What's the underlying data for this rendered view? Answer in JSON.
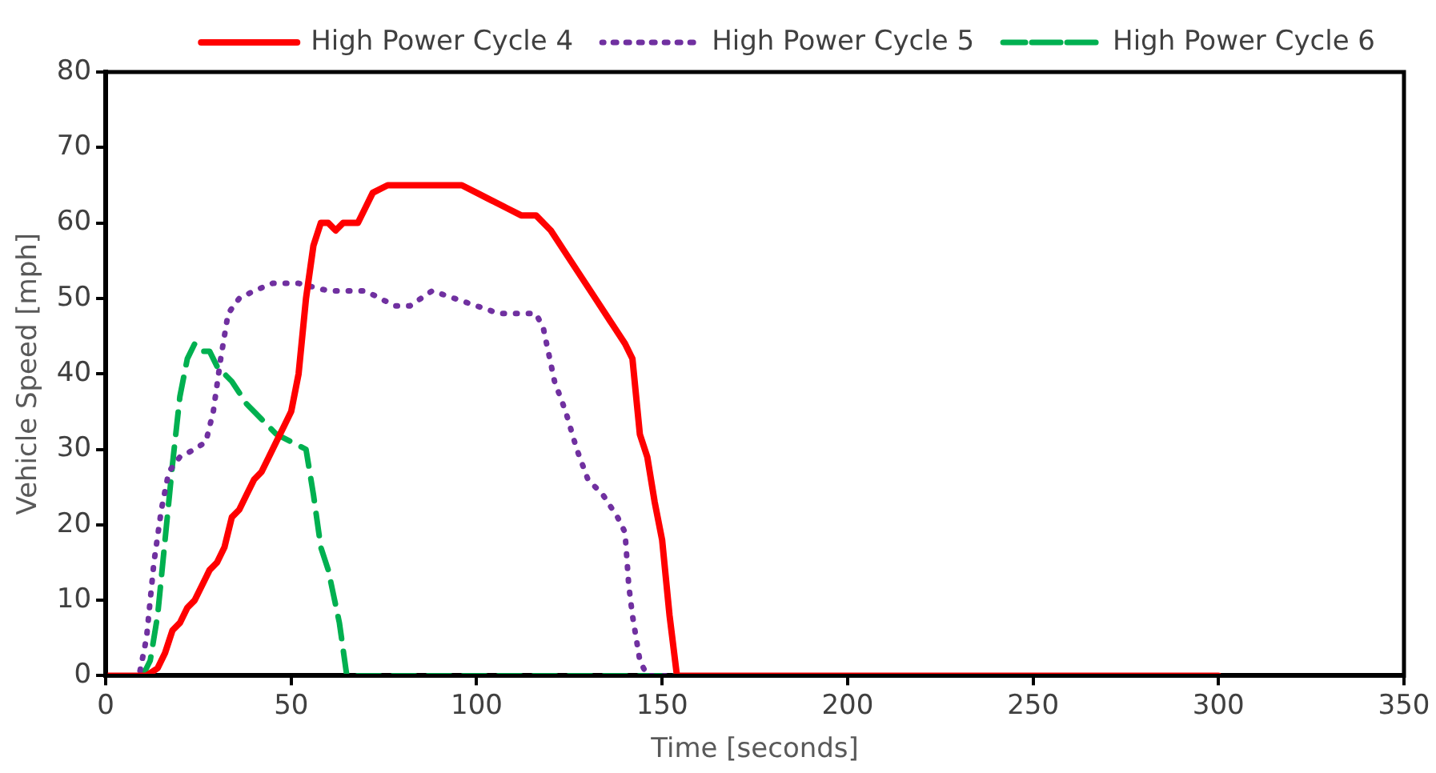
{
  "chart_data": {
    "type": "line",
    "xlabel": "Time [seconds]",
    "ylabel": "Vehicle Speed [mph]",
    "xlim": [
      0,
      350
    ],
    "xticks": [
      0,
      50,
      100,
      150,
      200,
      250,
      300,
      350
    ],
    "ylim": [
      0,
      80
    ],
    "yticks": [
      0,
      10,
      20,
      30,
      40,
      50,
      60,
      70,
      80
    ],
    "grid": false,
    "legend": "top",
    "marker": "none",
    "series": [
      {
        "name": "High Power Cycle 4",
        "color": "#ff0000",
        "line_style": "solid",
        "x": [
          0,
          11,
          14,
          16,
          18,
          20,
          22,
          24,
          26,
          28,
          30,
          32,
          34,
          36,
          38,
          40,
          42,
          44,
          46,
          48,
          50,
          52,
          54,
          56,
          58,
          60,
          62,
          64,
          66,
          68,
          70,
          72,
          76,
          96,
          100,
          104,
          108,
          112,
          116,
          120,
          124,
          128,
          132,
          136,
          140,
          142,
          144,
          146,
          148,
          150,
          152,
          154,
          300
        ],
        "values": [
          0,
          0,
          1,
          3,
          6,
          7,
          9,
          10,
          12,
          14,
          15,
          17,
          21,
          22,
          24,
          26,
          27,
          29,
          31,
          33,
          35,
          40,
          50,
          57,
          60,
          60,
          59,
          60,
          60,
          60,
          62,
          64,
          65,
          65,
          64,
          63,
          62,
          61,
          61,
          59,
          56,
          53,
          50,
          47,
          44,
          42,
          32,
          29,
          23,
          18,
          8,
          0,
          0
        ]
      },
      {
        "name": "High Power Cycle 5",
        "color": "#7030a0",
        "line_style": "dotted",
        "x": [
          0,
          9,
          11,
          13,
          15,
          17,
          20,
          24,
          27,
          29,
          31,
          33,
          36,
          40,
          45,
          52,
          60,
          70,
          78,
          82,
          88,
          94,
          100,
          106,
          116,
          118,
          121,
          124,
          127,
          130,
          134,
          138,
          140,
          141,
          142,
          144,
          146,
          300
        ],
        "values": [
          0,
          0,
          5,
          15,
          22,
          27,
          29,
          30,
          31,
          35,
          42,
          48,
          50,
          51,
          52,
          52,
          51,
          51,
          49,
          49,
          51,
          50,
          49,
          48,
          48,
          46,
          39,
          35,
          30,
          26,
          24,
          21,
          19,
          12,
          8,
          2,
          0,
          0
        ]
      },
      {
        "name": "High Power Cycle 6",
        "color": "#00b050",
        "line_style": "dashed",
        "x": [
          0,
          10,
          12,
          14,
          16,
          18,
          20,
          22,
          24,
          26,
          28,
          30,
          34,
          38,
          42,
          46,
          50,
          54,
          56,
          58,
          60,
          63,
          65,
          300
        ],
        "values": [
          0,
          0,
          2,
          8,
          18,
          28,
          37,
          42,
          44,
          43,
          43,
          41,
          39,
          36,
          34,
          32,
          31,
          30,
          24,
          17,
          14,
          7,
          0,
          0
        ]
      }
    ]
  }
}
